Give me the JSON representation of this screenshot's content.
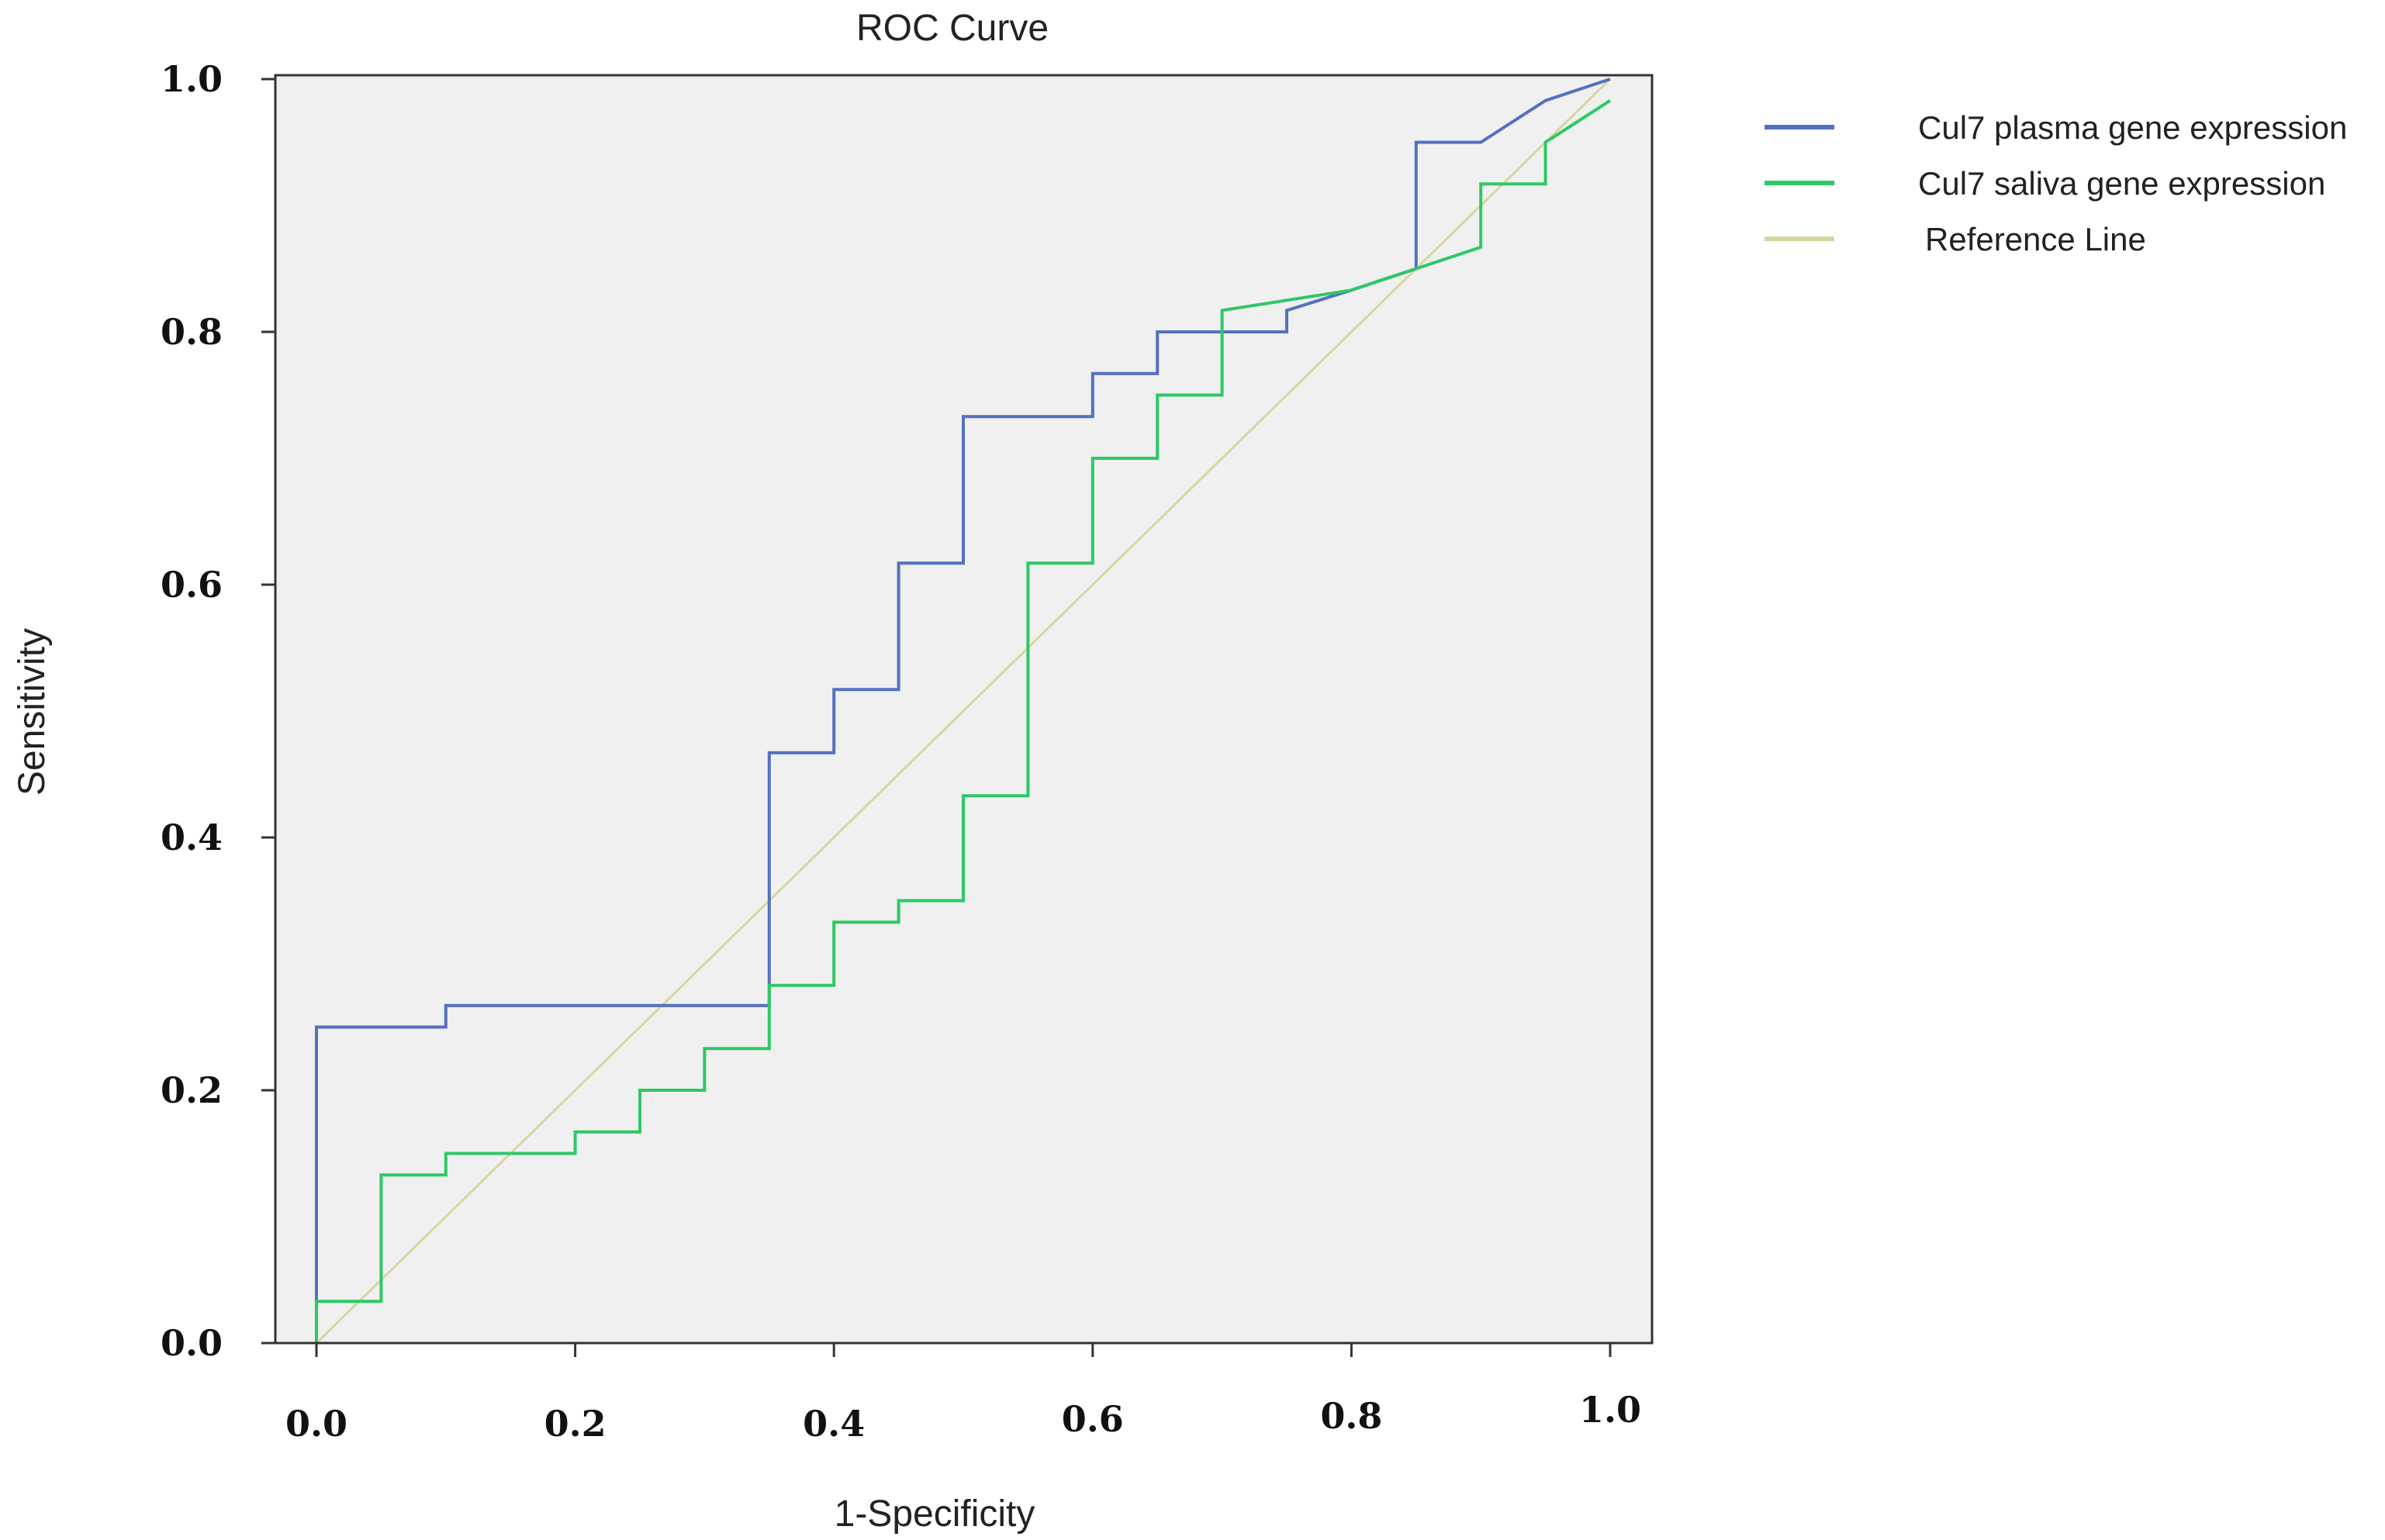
{
  "chart_data": {
    "type": "line",
    "title": "ROC Curve",
    "xlabel": "1-Specificity",
    "ylabel": "Sensitivity",
    "xlim": [
      0,
      1
    ],
    "ylim": [
      0,
      1
    ],
    "x_ticks": [
      "0.0",
      "0.2",
      "0.4",
      "0.6",
      "0.8",
      "1.0"
    ],
    "y_ticks": [
      "0.0",
      "0.2",
      "0.4",
      "0.6",
      "0.8",
      "1.0"
    ],
    "grid": false,
    "legend_position": "outside-right",
    "plot_background": "#f0f0f0",
    "series": [
      {
        "name": "Cul7 plasma gene expression",
        "color": "#5470c0",
        "x": [
          0,
          0,
          0.1,
          0.1,
          0.35,
          0.35,
          0.4,
          0.4,
          0.45,
          0.45,
          0.5,
          0.5,
          0.6,
          0.6,
          0.65,
          0.65,
          0.75,
          0.75,
          0.8,
          0.85,
          0.85,
          0.9,
          0.95,
          1.0
        ],
        "y": [
          0,
          0.25,
          0.25,
          0.267,
          0.267,
          0.467,
          0.467,
          0.517,
          0.517,
          0.617,
          0.617,
          0.733,
          0.733,
          0.767,
          0.767,
          0.8,
          0.8,
          0.817,
          0.833,
          0.85,
          0.95,
          0.95,
          0.983,
          1.0
        ]
      },
      {
        "name": "Cul7 saliva gene expression",
        "color": "#2ec866",
        "x": [
          0,
          0,
          0.05,
          0.05,
          0.1,
          0.1,
          0.2,
          0.2,
          0.25,
          0.25,
          0.3,
          0.3,
          0.35,
          0.35,
          0.4,
          0.4,
          0.45,
          0.45,
          0.5,
          0.5,
          0.55,
          0.55,
          0.6,
          0.6,
          0.65,
          0.65,
          0.7,
          0.7,
          0.8,
          0.85,
          0.9,
          0.9,
          0.95,
          0.95,
          1.0
        ],
        "y": [
          0,
          0.033,
          0.033,
          0.133,
          0.133,
          0.15,
          0.15,
          0.167,
          0.167,
          0.2,
          0.2,
          0.233,
          0.233,
          0.283,
          0.283,
          0.333,
          0.333,
          0.35,
          0.35,
          0.433,
          0.433,
          0.617,
          0.617,
          0.7,
          0.7,
          0.75,
          0.75,
          0.817,
          0.833,
          0.85,
          0.867,
          0.917,
          0.917,
          0.95,
          0.983
        ]
      },
      {
        "name": "Reference Line",
        "color": "#d8d6a0",
        "x": [
          0,
          1
        ],
        "y": [
          0,
          1
        ]
      }
    ]
  }
}
